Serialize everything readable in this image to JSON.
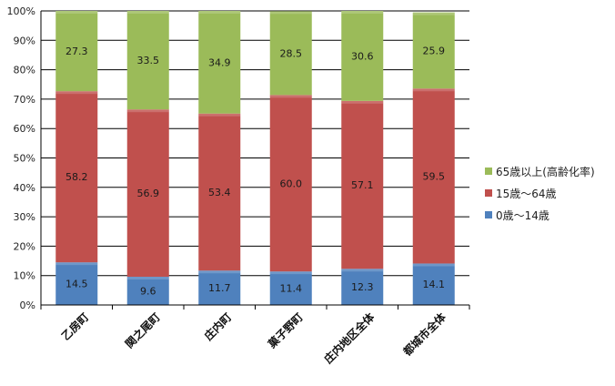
{
  "chart_data": {
    "type": "bar",
    "stacked": true,
    "percent": true,
    "categories": [
      "乙房町",
      "関之尾町",
      "庄内町",
      "菓子野町",
      "庄内地区全体",
      "都城市全体"
    ],
    "series": [
      {
        "name": "0歳〜14歳",
        "color": "#4F81BD",
        "values": [
          14.5,
          9.6,
          11.7,
          11.4,
          12.3,
          14.1
        ]
      },
      {
        "name": "15歳〜64歳",
        "color": "#C0504D",
        "values": [
          58.2,
          56.9,
          53.4,
          60.0,
          57.1,
          59.5
        ]
      },
      {
        "name": "65歳以上(高齢化率)",
        "color": "#9BBB59",
        "values": [
          27.3,
          33.5,
          34.9,
          28.5,
          30.6,
          25.9
        ]
      }
    ],
    "data_labels": [
      [
        "14.5",
        "9.6",
        "11.7",
        "11.4",
        "12.3",
        "14.1"
      ],
      [
        "58.2",
        "56.9",
        "53.4",
        "60.0",
        "57.1",
        "59.5"
      ],
      [
        "27.3",
        "33.5",
        "34.9",
        "28.5",
        "30.6",
        "25.9"
      ]
    ],
    "yticks": [
      "0%",
      "10%",
      "20%",
      "30%",
      "40%",
      "50%",
      "60%",
      "70%",
      "80%",
      "90%",
      "100%"
    ],
    "ylim": [
      0,
      100
    ],
    "grid": true,
    "legend_position": "right",
    "title": "",
    "xlabel": "",
    "ylabel": ""
  },
  "legend": {
    "items": [
      {
        "label": "65歳以上(高齢化率)",
        "color": "#9BBB59"
      },
      {
        "label": "15歳〜64歳",
        "color": "#C0504D"
      },
      {
        "label": "0歳〜14歳",
        "color": "#4F81BD"
      }
    ]
  }
}
